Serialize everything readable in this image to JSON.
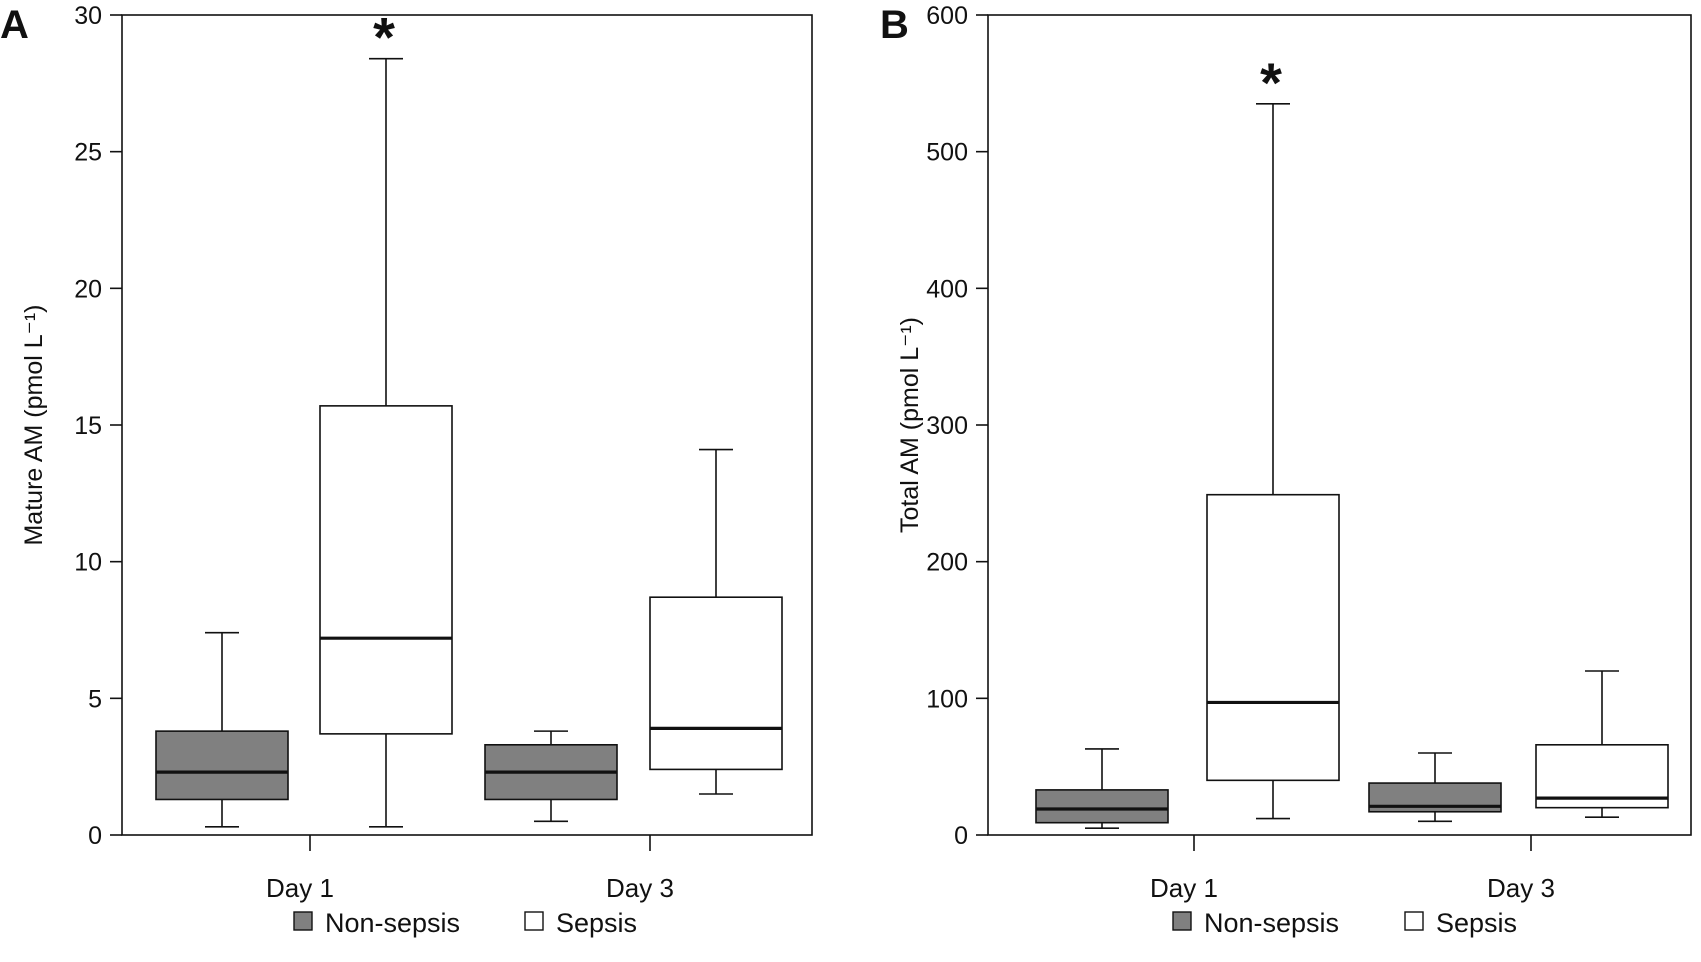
{
  "colors": {
    "non_sepsis_fill": "#808080",
    "sepsis_fill": "#ffffff",
    "stroke": "#111111"
  },
  "chart_data": [
    {
      "type": "box",
      "panel": "A",
      "ylabel": "Mature AM (pmol L⁻¹)",
      "ylim": [
        0,
        30
      ],
      "yticks": [
        0,
        5,
        10,
        15,
        20,
        25,
        30
      ],
      "categories": [
        "Day 1",
        "Day 3"
      ],
      "legend": [
        "Non-sepsis",
        "Sepsis"
      ],
      "series": [
        {
          "name": "Non-sepsis",
          "boxes": [
            {
              "min": 0.3,
              "q1": 1.3,
              "median": 2.3,
              "q3": 3.8,
              "max": 7.4
            },
            {
              "min": 0.5,
              "q1": 1.3,
              "median": 2.3,
              "q3": 3.3,
              "max": 3.8
            }
          ]
        },
        {
          "name": "Sepsis",
          "boxes": [
            {
              "min": 0.3,
              "q1": 3.7,
              "median": 7.2,
              "q3": 15.7,
              "max": 28.4
            },
            {
              "min": 1.5,
              "q1": 2.4,
              "median": 3.9,
              "q3": 8.7,
              "max": 14.1
            }
          ]
        }
      ],
      "annotations": [
        {
          "text": "*",
          "series": "Sepsis",
          "category": "Day 1"
        }
      ]
    },
    {
      "type": "box",
      "panel": "B",
      "ylabel": "Total AM (pmol L⁻¹)",
      "ylim": [
        0,
        600
      ],
      "yticks": [
        0,
        100,
        200,
        300,
        400,
        500,
        600
      ],
      "categories": [
        "Day 1",
        "Day 3"
      ],
      "legend": [
        "Non-sepsis",
        "Sepsis"
      ],
      "series": [
        {
          "name": "Non-sepsis",
          "boxes": [
            {
              "min": 5,
              "q1": 9,
              "median": 19,
              "q3": 33,
              "max": 63
            },
            {
              "min": 10,
              "q1": 17,
              "median": 21,
              "q3": 38,
              "max": 60
            }
          ]
        },
        {
          "name": "Sepsis",
          "boxes": [
            {
              "min": 12,
              "q1": 40,
              "median": 97,
              "q3": 249,
              "max": 535
            },
            {
              "min": 13,
              "q1": 20,
              "median": 27,
              "q3": 66,
              "max": 120
            }
          ]
        }
      ],
      "annotations": [
        {
          "text": "*",
          "series": "Sepsis",
          "category": "Day 1"
        }
      ]
    }
  ]
}
